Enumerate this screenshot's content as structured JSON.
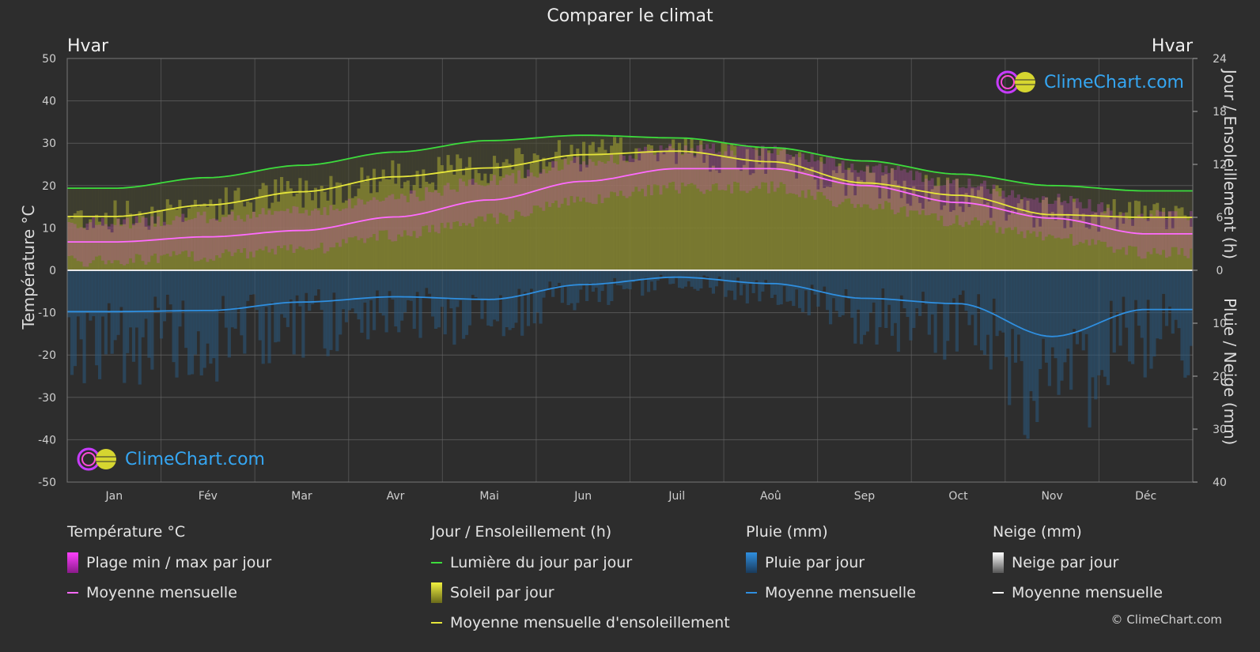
{
  "title": "Comparer le climat",
  "location_left": "Hvar",
  "location_right": "Hvar",
  "axis": {
    "left_title": "Température °C",
    "right_top_title": "Jour / Ensoleillement (h)",
    "right_bottom_title": "Pluie / Neige (mm)"
  },
  "logo_text": "ClimeChart.com",
  "copyright": "© ClimeChart.com",
  "colors": {
    "background": "#2d2d2d",
    "daylight": "#3ddc3d",
    "sunshine": "#e6e63a",
    "temperature": "#ff6bff",
    "rain": "#2f8fe0",
    "grid": "#666666"
  },
  "legend": {
    "temperature": {
      "heading": "Température °C",
      "items": [
        {
          "label": "Plage min / max par jour",
          "icon": "magenta-bar-icon"
        },
        {
          "label": "Moyenne mensuelle",
          "icon": "magenta-line-icon"
        }
      ]
    },
    "sun": {
      "heading": "Jour / Ensoleillement (h)",
      "items": [
        {
          "label": "Lumière du jour par jour",
          "icon": "green-line-icon"
        },
        {
          "label": "Soleil par jour",
          "icon": "yellow-bar-icon"
        },
        {
          "label": "Moyenne mensuelle d'ensoleillement",
          "icon": "yellow-line-icon"
        }
      ]
    },
    "rain": {
      "heading": "Pluie (mm)",
      "items": [
        {
          "label": "Pluie par jour",
          "icon": "blue-bar-icon"
        },
        {
          "label": "Moyenne mensuelle",
          "icon": "blue-line-icon"
        }
      ]
    },
    "snow": {
      "heading": "Neige (mm)",
      "items": [
        {
          "label": "Neige par jour",
          "icon": "white-bar-icon"
        },
        {
          "label": "Moyenne mensuelle",
          "icon": "white-line-icon"
        }
      ]
    }
  },
  "chart_data": {
    "type": "line",
    "categories": [
      "Jan",
      "Fév",
      "Mar",
      "Avr",
      "Mai",
      "Jun",
      "Juil",
      "Aoû",
      "Sep",
      "Oct",
      "Nov",
      "Déc"
    ],
    "left_axis": {
      "ticks": [
        50,
        40,
        30,
        20,
        10,
        0,
        -10,
        -20,
        -30,
        -40,
        -50
      ],
      "ylim": [
        -50,
        50
      ]
    },
    "right_axis_sun": {
      "ticks": [
        24,
        18,
        12,
        6,
        0
      ],
      "ylim": [
        0,
        24
      ]
    },
    "right_axis_rain": {
      "ticks": [
        0,
        10,
        20,
        30,
        40
      ],
      "ylim": [
        0,
        40
      ]
    },
    "grid": true,
    "series": [
      {
        "name": "Lumière du jour par jour",
        "unit": "h",
        "values": [
          9.3,
          10.5,
          11.9,
          13.4,
          14.7,
          15.3,
          15.0,
          13.9,
          12.4,
          10.9,
          9.6,
          9.0
        ]
      },
      {
        "name": "Moyenne mensuelle d'ensoleillement",
        "unit": "h",
        "values": [
          6.1,
          7.4,
          8.9,
          10.6,
          11.6,
          13.1,
          13.5,
          12.3,
          9.9,
          8.5,
          6.3,
          6.0
        ]
      },
      {
        "name": "Moyenne mensuelle",
        "unit": "°C",
        "values": [
          6.7,
          7.9,
          9.4,
          12.6,
          16.6,
          21.0,
          24.0,
          24.0,
          20.0,
          16.0,
          12.3,
          8.6
        ]
      },
      {
        "name": "Moyenne mensuelle",
        "unit": "mm",
        "values": [
          7.8,
          7.6,
          6.0,
          5.0,
          5.5,
          2.7,
          1.3,
          2.5,
          5.3,
          6.3,
          12.5,
          7.4
        ]
      }
    ]
  }
}
